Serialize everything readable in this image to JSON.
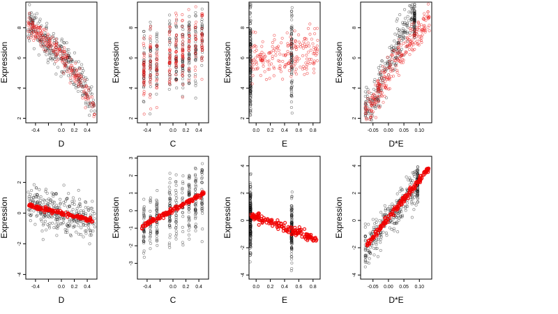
{
  "colors": {
    "observed": "#000000",
    "fitted": "#ff0000",
    "background": "#ffffff"
  },
  "chart_data": [
    {
      "type": "scatter",
      "title": "",
      "xlabel": "D",
      "ylabel": "Expression",
      "xticks": [
        -0.4,
        -0.2,
        0.0,
        0.2,
        0.4
      ],
      "xticklabels": [
        "-0.4",
        "",
        "0.0",
        "0.2",
        "0.4"
      ],
      "yticks": [
        2,
        4,
        6,
        8
      ],
      "xlim": [
        -0.55,
        0.55
      ],
      "ylim": [
        1.7,
        9.7
      ],
      "series": [
        {
          "role": "observed",
          "style": "black",
          "cloud": {
            "type": "numeric",
            "x": [
              -0.5,
              -0.4,
              -0.3,
              -0.2,
              -0.1,
              0.0,
              0.1,
              0.2,
              0.3,
              0.4,
              0.5
            ],
            "y": [
              8.3,
              8.0,
              7.6,
              7.0,
              6.6,
              6.2,
              5.7,
              5.0,
              4.3,
              3.6,
              2.9
            ],
            "spread": 1.4,
            "count": 300,
            "seed": 11
          }
        },
        {
          "role": "fitted",
          "style": "red",
          "cloud": {
            "type": "numeric",
            "x": [
              -0.5,
              -0.4,
              -0.3,
              -0.2,
              -0.1,
              0.0,
              0.1,
              0.2,
              0.3,
              0.4,
              0.5
            ],
            "y": [
              8.2,
              7.9,
              7.5,
              7.0,
              6.6,
              6.1,
              5.6,
              5.0,
              4.3,
              3.5,
              2.6
            ],
            "spread": 0.9,
            "count": 220,
            "seed": 12
          }
        }
      ]
    },
    {
      "type": "scatter",
      "title": "",
      "xlabel": "C",
      "ylabel": "Expression",
      "xticks": [
        -0.4,
        -0.2,
        0.0,
        0.2,
        0.4
      ],
      "xticklabels": [
        "-0.4",
        "",
        "0.0",
        "0.2",
        "0.4"
      ],
      "yticks": [
        2,
        4,
        6,
        8
      ],
      "xlim": [
        -0.55,
        0.55
      ],
      "ylim": [
        1.7,
        9.7
      ],
      "series": [
        {
          "role": "observed",
          "style": "black",
          "cloud": {
            "type": "columns",
            "x": [
              -0.45,
              -0.35,
              -0.25,
              -0.05,
              0.05,
              0.15,
              0.25,
              0.35,
              0.45
            ],
            "y": [
              5.5,
              5.6,
              5.8,
              6.0,
              6.1,
              6.2,
              6.4,
              6.6,
              7.2
            ],
            "spread": 2.6,
            "count": 300,
            "seed": 21
          }
        },
        {
          "role": "fitted",
          "style": "red",
          "cloud": {
            "type": "columns",
            "x": [
              -0.45,
              -0.35,
              -0.25,
              -0.05,
              0.05,
              0.15,
              0.25,
              0.35,
              0.45
            ],
            "y": [
              5.4,
              5.6,
              5.8,
              6.0,
              6.2,
              6.3,
              6.5,
              6.8,
              7.2
            ],
            "spread": 2.2,
            "count": 240,
            "seed": 22
          }
        }
      ]
    },
    {
      "type": "scatter",
      "title": "",
      "xlabel": "E",
      "ylabel": "Expression",
      "xticks": [
        0.0,
        0.2,
        0.4,
        0.6,
        0.8
      ],
      "xticklabels": [
        "0.0",
        "0.2",
        "0.4",
        "0.6",
        "0.8"
      ],
      "yticks": [
        2,
        4,
        6,
        8
      ],
      "xlim": [
        -0.1,
        0.9
      ],
      "ylim": [
        1.7,
        9.7
      ],
      "series": [
        {
          "role": "observed",
          "style": "black",
          "cloud": {
            "type": "columns",
            "x": [
              -0.08,
              -0.08,
              0.5
            ],
            "y": [
              5.5,
              5.8,
              6.0
            ],
            "spread": 4.0,
            "count": 260,
            "seed": 31
          }
        },
        {
          "role": "fitted",
          "style": "red",
          "cloud": {
            "type": "numeric",
            "x": [
              -0.08,
              0.1,
              0.3,
              0.5,
              0.7,
              0.85
            ],
            "y": [
              5.8,
              5.9,
              6.0,
              6.1,
              6.3,
              6.5
            ],
            "spread": 1.8,
            "count": 200,
            "seed": 32
          }
        }
      ]
    },
    {
      "type": "scatter",
      "title": "",
      "xlabel": "D*E",
      "ylabel": "Expression",
      "xticks": [
        -0.05,
        0.0,
        0.05,
        0.1
      ],
      "xticklabels": [
        "-0.05",
        "0.00",
        "0.05",
        "0.10"
      ],
      "yticks": [
        2,
        4,
        6,
        8
      ],
      "xlim": [
        -0.09,
        0.14
      ],
      "ylim": [
        1.7,
        9.7
      ],
      "series": [
        {
          "role": "observed",
          "style": "black",
          "cloud": {
            "type": "numeric",
            "x": [
              -0.07,
              -0.05,
              -0.03,
              -0.01,
              0.0,
              0.02,
              0.04,
              0.06,
              0.08
            ],
            "y": [
              2.6,
              3.2,
              4.0,
              4.8,
              5.5,
              6.3,
              7.2,
              7.9,
              8.6
            ],
            "spread": 1.6,
            "count": 300,
            "seed": 41
          }
        },
        {
          "role": "fitted",
          "style": "red",
          "cloud": {
            "type": "numeric",
            "x": [
              -0.07,
              -0.05,
              -0.03,
              -0.01,
              0.01,
              0.03,
              0.05,
              0.07,
              0.1,
              0.13
            ],
            "y": [
              2.4,
              3.1,
              3.8,
              4.5,
              5.2,
              5.9,
              6.5,
              7.1,
              7.8,
              8.5
            ],
            "spread": 1.3,
            "count": 260,
            "seed": 42
          }
        }
      ]
    },
    {
      "type": "scatter",
      "title": "",
      "xlabel": "D",
      "ylabel": "Expression",
      "xticks": [
        -0.4,
        -0.2,
        0.0,
        0.2,
        0.4
      ],
      "xticklabels": [
        "-0.4",
        "",
        "0.0",
        "0.2",
        "0.4"
      ],
      "yticks": [
        -4,
        -2,
        0,
        2
      ],
      "xlim": [
        -0.55,
        0.55
      ],
      "ylim": [
        -4.3,
        3.7
      ],
      "series": [
        {
          "role": "observed",
          "style": "black",
          "cloud": {
            "type": "numeric",
            "x": [
              -0.5,
              -0.4,
              -0.3,
              -0.2,
              -0.1,
              0.0,
              0.1,
              0.2,
              0.3,
              0.4,
              0.5
            ],
            "y": [
              0.5,
              0.4,
              0.3,
              0.2,
              0.1,
              0.0,
              -0.1,
              -0.2,
              -0.3,
              -0.4,
              -0.5
            ],
            "spread": 1.4,
            "count": 320,
            "seed": 51
          }
        },
        {
          "role": "fitted",
          "style": "red-solid",
          "cloud": {
            "type": "line",
            "x": [
              -0.5,
              0.5
            ],
            "y": [
              0.5,
              -0.5
            ],
            "spread": 0.06,
            "count": 140,
            "seed": 52
          }
        }
      ]
    },
    {
      "type": "scatter",
      "title": "",
      "xlabel": "C",
      "ylabel": "Expression",
      "xticks": [
        -0.4,
        -0.2,
        0.0,
        0.2,
        0.4
      ],
      "xticklabels": [
        "-0.4",
        "",
        "0.0",
        "0.2",
        "0.4"
      ],
      "yticks": [
        -3,
        -2,
        -1,
        0,
        1,
        2,
        3
      ],
      "xlim": [
        -0.55,
        0.55
      ],
      "ylim": [
        -3.9,
        3.1
      ],
      "series": [
        {
          "role": "observed",
          "style": "black",
          "cloud": {
            "type": "columns",
            "x": [
              -0.45,
              -0.35,
              -0.25,
              -0.05,
              0.05,
              0.15,
              0.25,
              0.35,
              0.45
            ],
            "y": [
              -0.9,
              -0.7,
              -0.5,
              -0.1,
              0.1,
              0.3,
              0.5,
              0.7,
              0.9
            ],
            "spread": 1.8,
            "count": 340,
            "seed": 61
          }
        },
        {
          "role": "fitted",
          "style": "red-solid",
          "cloud": {
            "type": "line",
            "x": [
              -0.48,
              0.48
            ],
            "y": [
              -0.9,
              1.0
            ],
            "spread": 0.06,
            "count": 140,
            "seed": 62
          }
        }
      ]
    },
    {
      "type": "scatter",
      "title": "",
      "xlabel": "E",
      "ylabel": "Expression",
      "xticks": [
        0.0,
        0.2,
        0.4,
        0.6,
        0.8
      ],
      "xticklabels": [
        "0.0",
        "0.2",
        "0.4",
        "0.6",
        "0.8"
      ],
      "yticks": [
        -4,
        -2,
        0,
        2,
        4
      ],
      "xlim": [
        -0.1,
        0.9
      ],
      "ylim": [
        -4.3,
        4.7
      ],
      "series": [
        {
          "role": "observed",
          "style": "black",
          "cloud": {
            "type": "columns",
            "x": [
              -0.08,
              -0.08,
              0.5
            ],
            "y": [
              0.3,
              0.1,
              -0.9
            ],
            "spread": 2.6,
            "count": 280,
            "seed": 71
          }
        },
        {
          "role": "fitted",
          "style": "red-solid",
          "cloud": {
            "type": "line",
            "x": [
              -0.08,
              0.85
            ],
            "y": [
              0.4,
              -1.4
            ],
            "spread": 0.15,
            "count": 150,
            "seed": 72
          }
        }
      ]
    },
    {
      "type": "scatter",
      "title": "",
      "xlabel": "D*E",
      "ylabel": "Expression",
      "xticks": [
        -0.05,
        0.0,
        0.05,
        0.1
      ],
      "xticklabels": [
        "-0.05",
        "0.00",
        "0.05",
        "0.10"
      ],
      "yticks": [
        -4,
        -2,
        0,
        2,
        4
      ],
      "xlim": [
        -0.09,
        0.14
      ],
      "ylim": [
        -4.3,
        4.7
      ],
      "series": [
        {
          "role": "observed",
          "style": "black",
          "cloud": {
            "type": "numeric",
            "x": [
              -0.07,
              -0.05,
              -0.03,
              -0.01,
              0.01,
              0.03,
              0.05,
              0.07,
              0.09
            ],
            "y": [
              -2.2,
              -1.5,
              -0.9,
              -0.3,
              0.3,
              0.9,
              1.5,
              2.1,
              2.7
            ],
            "spread": 1.6,
            "count": 320,
            "seed": 81
          }
        },
        {
          "role": "fitted",
          "style": "red-solid",
          "cloud": {
            "type": "line",
            "x": [
              -0.07,
              0.13
            ],
            "y": [
              -1.8,
              3.8
            ],
            "spread": 0.12,
            "count": 170,
            "seed": 82
          }
        }
      ]
    }
  ]
}
